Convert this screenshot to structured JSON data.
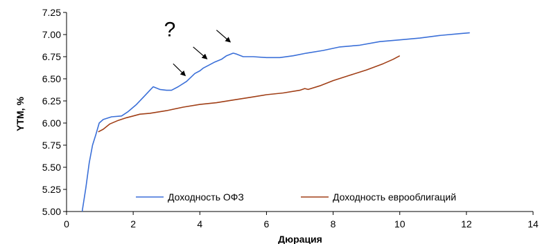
{
  "chart_data": {
    "type": "line",
    "title": "",
    "xlabel": "Дюрация",
    "ylabel": "YTM, %",
    "xlim": [
      0,
      14
    ],
    "ylim": [
      5.0,
      7.25
    ],
    "x_ticks": [
      0,
      2,
      4,
      6,
      8,
      10,
      12,
      14
    ],
    "y_ticks": [
      5.0,
      5.25,
      5.5,
      5.75,
      6.0,
      6.25,
      6.5,
      6.75,
      7.0,
      7.25
    ],
    "x_tick_labels": [
      "0",
      "2",
      "4",
      "6",
      "8",
      "10",
      "12",
      "14"
    ],
    "y_tick_labels": [
      "5.00",
      "5.25",
      "5.50",
      "5.75",
      "6.00",
      "6.25",
      "6.50",
      "6.75",
      "7.00",
      "7.25"
    ],
    "grid": false,
    "legend_position": "bottom-center",
    "series": [
      {
        "name": "Доходность ОФЗ",
        "color": "#3a6fd8",
        "points": [
          [
            0.47,
            5.0
          ],
          [
            0.48,
            5.03
          ],
          [
            0.58,
            5.27
          ],
          [
            0.68,
            5.55
          ],
          [
            0.78,
            5.75
          ],
          [
            0.88,
            5.87
          ],
          [
            0.98,
            6.0
          ],
          [
            1.1,
            6.04
          ],
          [
            1.35,
            6.07
          ],
          [
            1.65,
            6.08
          ],
          [
            1.85,
            6.13
          ],
          [
            2.1,
            6.21
          ],
          [
            2.35,
            6.31
          ],
          [
            2.6,
            6.41
          ],
          [
            2.8,
            6.38
          ],
          [
            3.0,
            6.37
          ],
          [
            3.15,
            6.37
          ],
          [
            3.35,
            6.41
          ],
          [
            3.6,
            6.47
          ],
          [
            3.85,
            6.56
          ],
          [
            4.0,
            6.59
          ],
          [
            4.1,
            6.62
          ],
          [
            4.25,
            6.65
          ],
          [
            4.45,
            6.69
          ],
          [
            4.65,
            6.72
          ],
          [
            4.8,
            6.76
          ],
          [
            5.0,
            6.79
          ],
          [
            5.1,
            6.78
          ],
          [
            5.3,
            6.75
          ],
          [
            5.6,
            6.75
          ],
          [
            6.0,
            6.74
          ],
          [
            6.4,
            6.74
          ],
          [
            6.8,
            6.76
          ],
          [
            7.2,
            6.79
          ],
          [
            7.7,
            6.82
          ],
          [
            8.2,
            6.86
          ],
          [
            8.8,
            6.88
          ],
          [
            9.4,
            6.92
          ],
          [
            10.0,
            6.94
          ],
          [
            10.6,
            6.96
          ],
          [
            11.2,
            6.99
          ],
          [
            11.8,
            7.01
          ],
          [
            12.1,
            7.02
          ]
        ]
      },
      {
        "name": "Доходность еврооблигаций",
        "color": "#a03e16",
        "points": [
          [
            0.95,
            5.9
          ],
          [
            1.1,
            5.93
          ],
          [
            1.3,
            5.99
          ],
          [
            1.55,
            6.03
          ],
          [
            1.8,
            6.06
          ],
          [
            2.0,
            6.08
          ],
          [
            2.2,
            6.1
          ],
          [
            2.5,
            6.11
          ],
          [
            3.0,
            6.14
          ],
          [
            3.5,
            6.18
          ],
          [
            4.0,
            6.21
          ],
          [
            4.5,
            6.23
          ],
          [
            5.0,
            6.26
          ],
          [
            5.5,
            6.29
          ],
          [
            6.0,
            6.32
          ],
          [
            6.5,
            6.34
          ],
          [
            7.0,
            6.37
          ],
          [
            7.15,
            6.39
          ],
          [
            7.25,
            6.38
          ],
          [
            7.6,
            6.42
          ],
          [
            8.0,
            6.48
          ],
          [
            8.5,
            6.54
          ],
          [
            9.0,
            6.6
          ],
          [
            9.5,
            6.67
          ],
          [
            9.8,
            6.72
          ],
          [
            10.0,
            6.76
          ]
        ]
      }
    ],
    "annotations": [
      {
        "text": "?",
        "x": 3.1,
        "y": 6.98
      },
      {
        "text": "",
        "arrow_from": [
          3.2,
          6.67
        ],
        "arrow_to": [
          3.55,
          6.54
        ]
      },
      {
        "text": "",
        "arrow_from": [
          3.8,
          6.86
        ],
        "arrow_to": [
          4.2,
          6.73
        ]
      },
      {
        "text": "",
        "arrow_from": [
          4.5,
          7.05
        ],
        "arrow_to": [
          4.9,
          6.92
        ]
      }
    ]
  }
}
